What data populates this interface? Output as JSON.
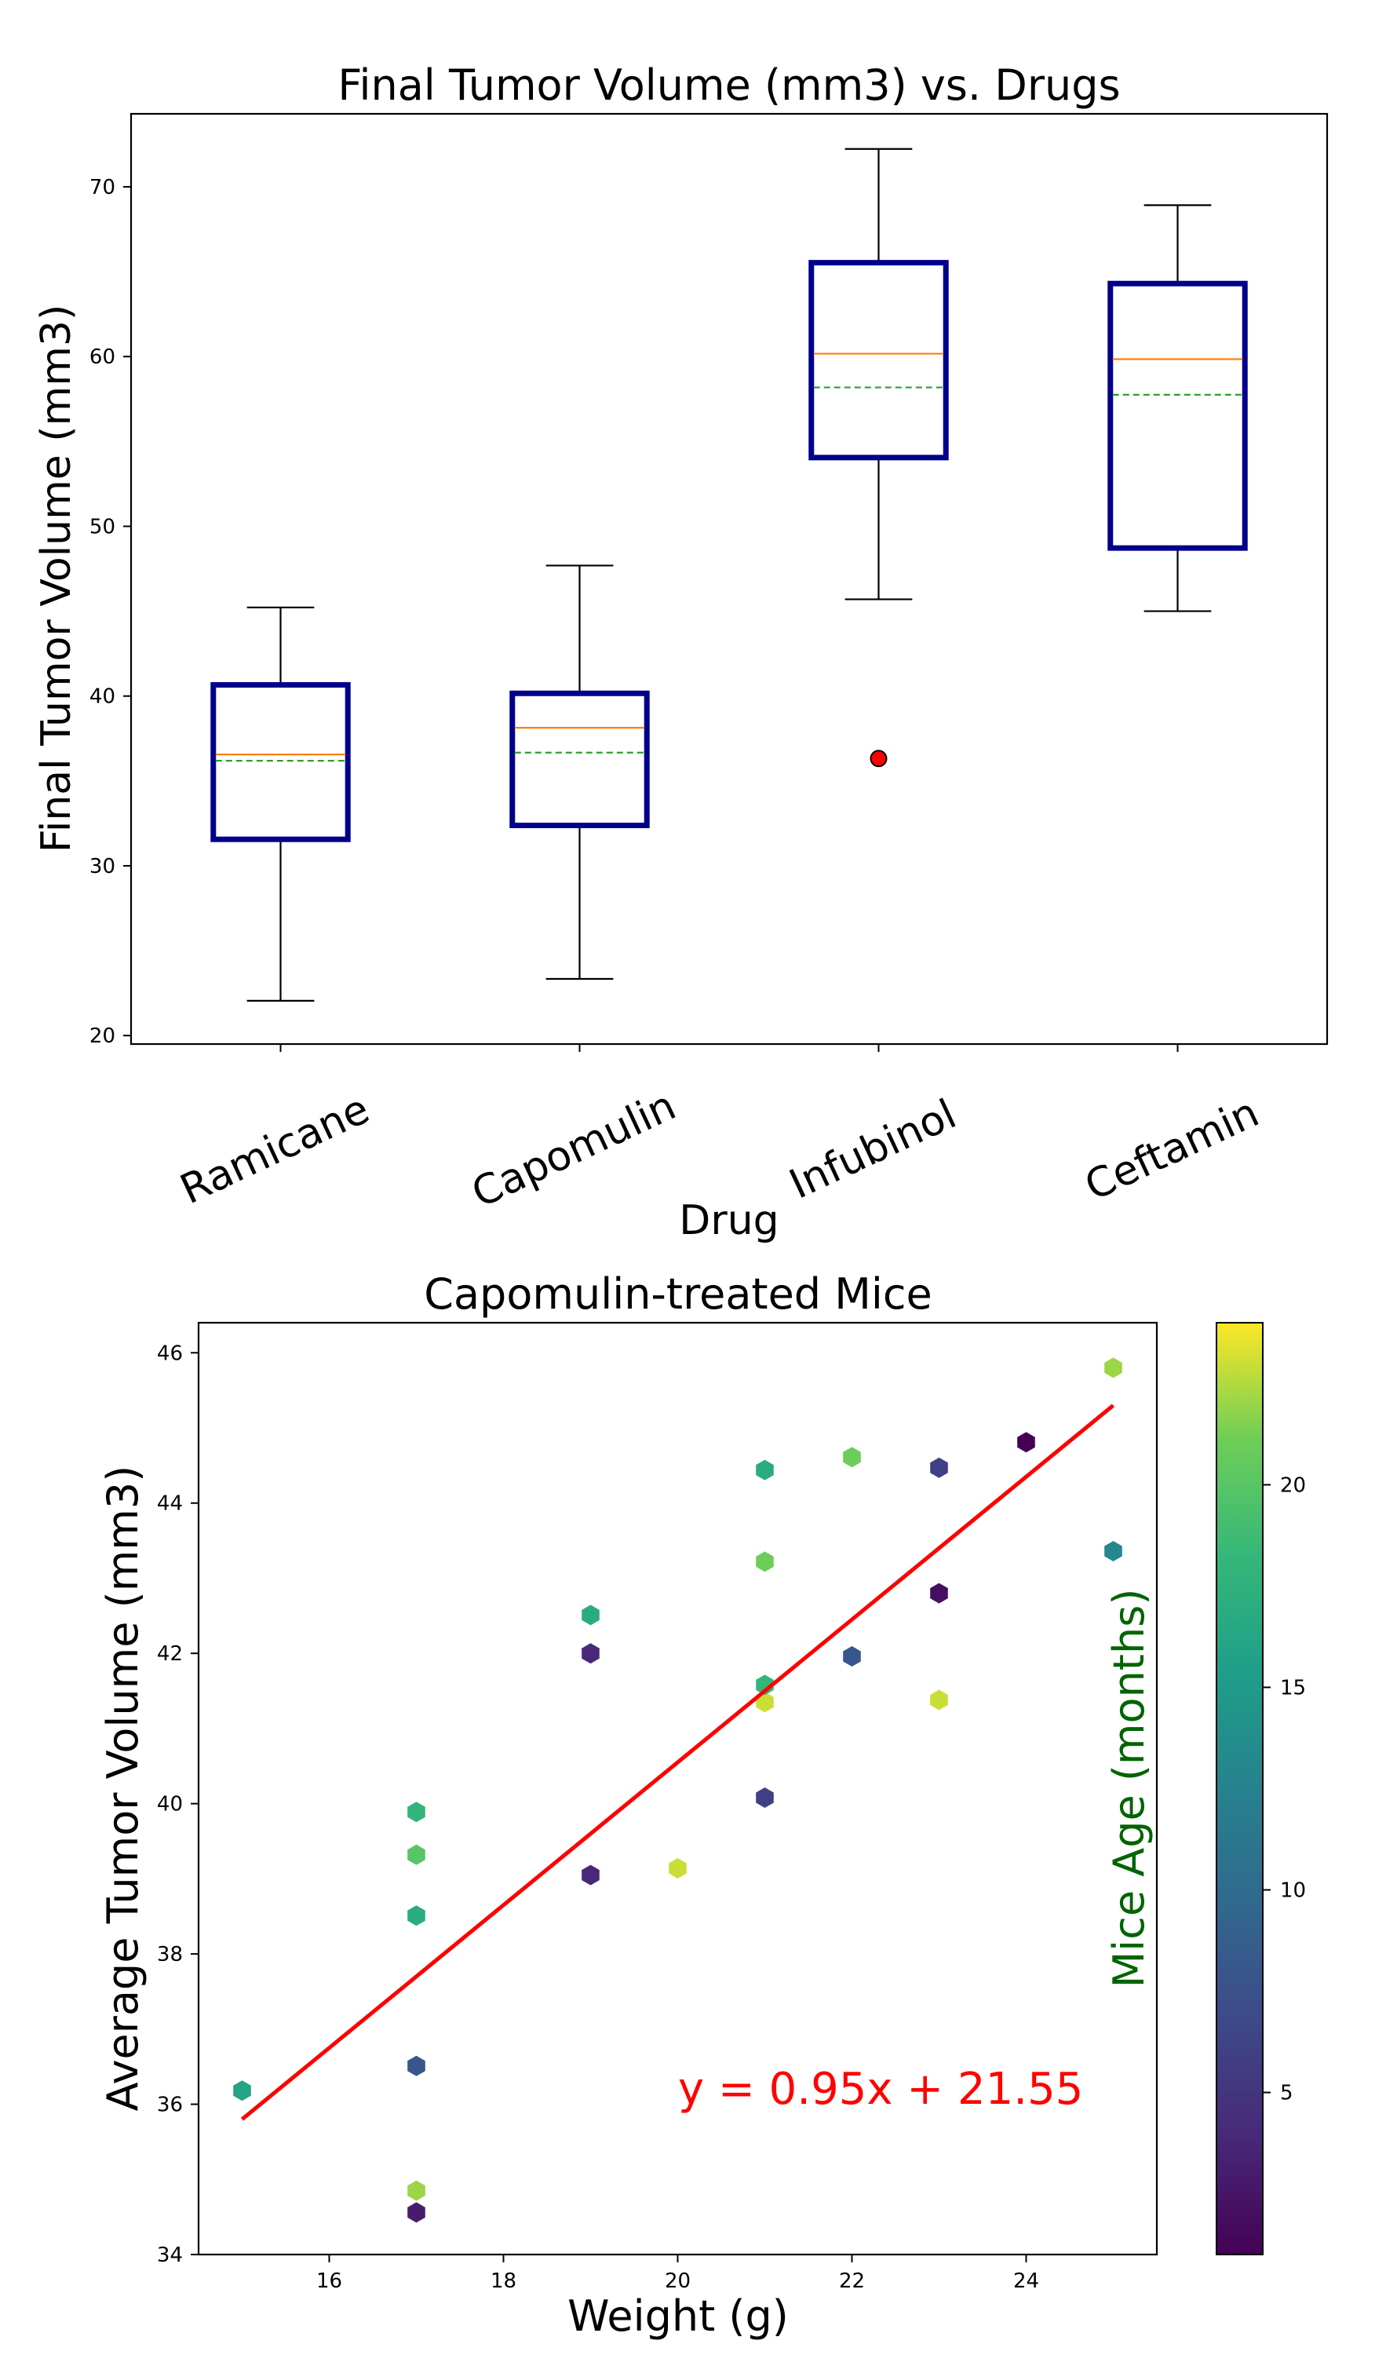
{
  "chart_data": [
    {
      "type": "box",
      "title": "Final Tumor Volume (mm3) vs. Drugs",
      "xlabel": "Drug",
      "ylabel": "Final Tumor Volume (mm3)",
      "categories": [
        "Ramicane",
        "Capomulin",
        "Infubinol",
        "Ceftamin"
      ],
      "yticks": [
        20,
        30,
        40,
        50,
        60,
        70
      ],
      "ylim": [
        19.5,
        74.3
      ],
      "boxes": [
        {
          "whislo": 22.05,
          "q1": 31.56,
          "med": 36.56,
          "mean": 36.19,
          "q3": 40.66,
          "whishi": 45.22,
          "fliers": []
        },
        {
          "whislo": 23.34,
          "q1": 32.38,
          "med": 38.13,
          "mean": 36.67,
          "q3": 40.16,
          "whishi": 47.69,
          "fliers": []
        },
        {
          "whislo": 45.7,
          "q1": 54.05,
          "med": 60.17,
          "mean": 58.18,
          "q3": 65.53,
          "whishi": 72.23,
          "fliers": [
            36.32
          ]
        },
        {
          "whislo": 45.0,
          "q1": 48.72,
          "med": 59.85,
          "mean": 57.75,
          "q3": 64.3,
          "whishi": 68.92,
          "fliers": []
        }
      ],
      "colors": {
        "box": "#00008b",
        "median": "#ff7f0e",
        "mean": "#2ca02c",
        "whisker": "#000000",
        "flier": "#ff0000"
      }
    },
    {
      "type": "scatter",
      "title": "Capomulin-treated Mice",
      "xlabel": "Weight (g)",
      "ylabel": "Average Tumor Volume (mm3)",
      "xlim": [
        14.5,
        25.5
      ],
      "ylim": [
        34.0,
        46.4
      ],
      "xticks": [
        16,
        18,
        20,
        22,
        24
      ],
      "yticks": [
        34,
        36,
        38,
        40,
        42,
        44,
        46
      ],
      "marker": "hexagon",
      "colorbar": {
        "label": "Mice Age (months)",
        "ticks": [
          5,
          10,
          15,
          20
        ],
        "range": [
          1,
          24
        ],
        "label_color": "#006400"
      },
      "points": [
        {
          "x": 15,
          "y": 36.18,
          "c": 16
        },
        {
          "x": 17,
          "y": 34.56,
          "c": 3
        },
        {
          "x": 17,
          "y": 34.85,
          "c": 22
        },
        {
          "x": 17,
          "y": 36.51,
          "c": 8
        },
        {
          "x": 17,
          "y": 38.51,
          "c": 17
        },
        {
          "x": 17,
          "y": 39.32,
          "c": 20
        },
        {
          "x": 17,
          "y": 39.89,
          "c": 18
        },
        {
          "x": 19,
          "y": 39.05,
          "c": 4
        },
        {
          "x": 19,
          "y": 42.0,
          "c": 4
        },
        {
          "x": 19,
          "y": 42.51,
          "c": 17
        },
        {
          "x": 20,
          "y": 39.14,
          "c": 23
        },
        {
          "x": 21,
          "y": 40.08,
          "c": 6
        },
        {
          "x": 21,
          "y": 41.35,
          "c": 23
        },
        {
          "x": 21,
          "y": 41.58,
          "c": 18
        },
        {
          "x": 21,
          "y": 43.22,
          "c": 21
        },
        {
          "x": 21,
          "y": 44.44,
          "c": 17
        },
        {
          "x": 22,
          "y": 41.96,
          "c": 8
        },
        {
          "x": 22,
          "y": 44.61,
          "c": 21
        },
        {
          "x": 23,
          "y": 41.38,
          "c": 23
        },
        {
          "x": 23,
          "y": 42.8,
          "c": 2
        },
        {
          "x": 23,
          "y": 44.47,
          "c": 6
        },
        {
          "x": 24,
          "y": 44.81,
          "c": 1
        },
        {
          "x": 25,
          "y": 43.36,
          "c": 13
        },
        {
          "x": 25,
          "y": 45.8,
          "c": 22
        }
      ],
      "regression": {
        "slope": 0.95,
        "intercept": 21.55,
        "x_range": [
          15,
          25
        ],
        "color": "#ff0000"
      },
      "annotation": "y = 0.95x + 21.55"
    }
  ]
}
